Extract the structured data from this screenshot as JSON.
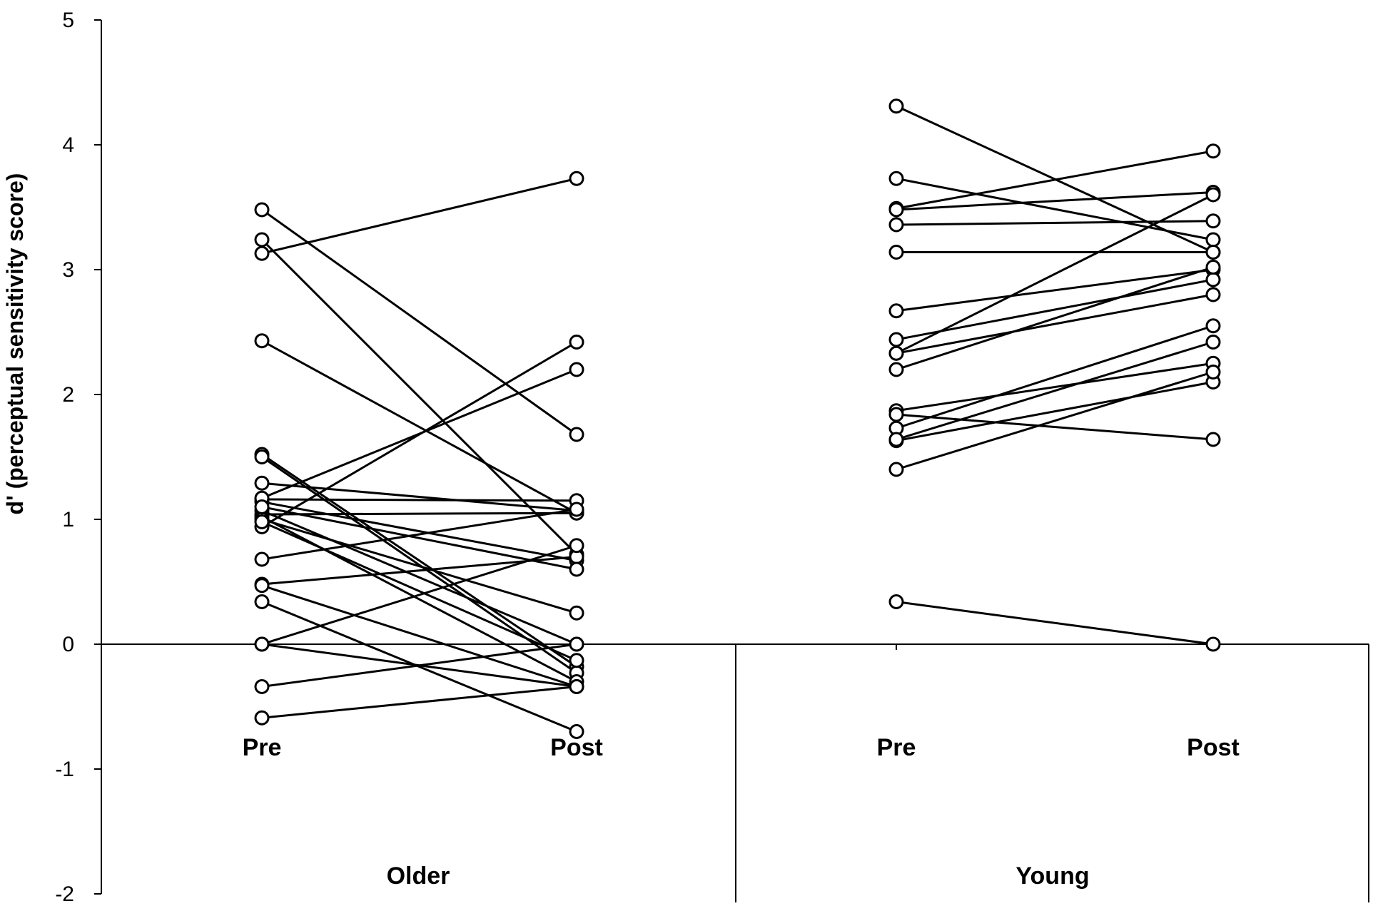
{
  "chart_data": {
    "type": "line",
    "title": "",
    "xlabel": "",
    "ylabel": "d' (perceptual sensitivity score)",
    "ylim": [
      -2,
      5
    ],
    "y_ticks": [
      "5",
      "4",
      "3",
      "2",
      "1",
      "0",
      "-1",
      "-2"
    ],
    "grid": false,
    "legend": "none",
    "groups": [
      {
        "name": "Older",
        "conditions": [
          "Pre",
          "Post"
        ],
        "pairs": [
          [
            3.13,
            3.73
          ],
          [
            3.48,
            1.68
          ],
          [
            3.24,
            0.72
          ],
          [
            2.43,
            1.05
          ],
          [
            1.52,
            -0.18
          ],
          [
            1.5,
            -0.23
          ],
          [
            1.29,
            1.07
          ],
          [
            1.16,
            1.15
          ],
          [
            1.14,
            0.67
          ],
          [
            1.07,
            0.0
          ],
          [
            1.04,
            1.05
          ],
          [
            1.02,
            -0.3
          ],
          [
            0.94,
            2.42
          ],
          [
            1.17,
            2.2
          ],
          [
            1.0,
            0.25
          ],
          [
            0.68,
            1.08
          ],
          [
            0.48,
            0.7
          ],
          [
            0.47,
            -0.34
          ],
          [
            0.34,
            -0.7
          ],
          [
            0.0,
            0.79
          ],
          [
            0.0,
            -0.34
          ],
          [
            -0.34,
            0.0
          ],
          [
            -0.59,
            -0.34
          ],
          [
            0.98,
            -0.13
          ],
          [
            1.1,
            0.6
          ]
        ]
      },
      {
        "name": "Young",
        "conditions": [
          "Pre",
          "Post"
        ],
        "pairs": [
          [
            4.31,
            3.14
          ],
          [
            3.73,
            3.24
          ],
          [
            3.49,
            3.95
          ],
          [
            3.48,
            3.62
          ],
          [
            3.36,
            3.39
          ],
          [
            3.14,
            3.14
          ],
          [
            2.67,
            3.0
          ],
          [
            2.44,
            2.92
          ],
          [
            2.33,
            2.8
          ],
          [
            2.2,
            3.02
          ],
          [
            1.87,
            2.25
          ],
          [
            1.84,
            1.64
          ],
          [
            1.73,
            2.55
          ],
          [
            1.63,
            2.1
          ],
          [
            1.64,
            2.42
          ],
          [
            1.4,
            2.18
          ],
          [
            0.34,
            0.0
          ],
          [
            2.33,
            3.6
          ]
        ]
      }
    ]
  }
}
